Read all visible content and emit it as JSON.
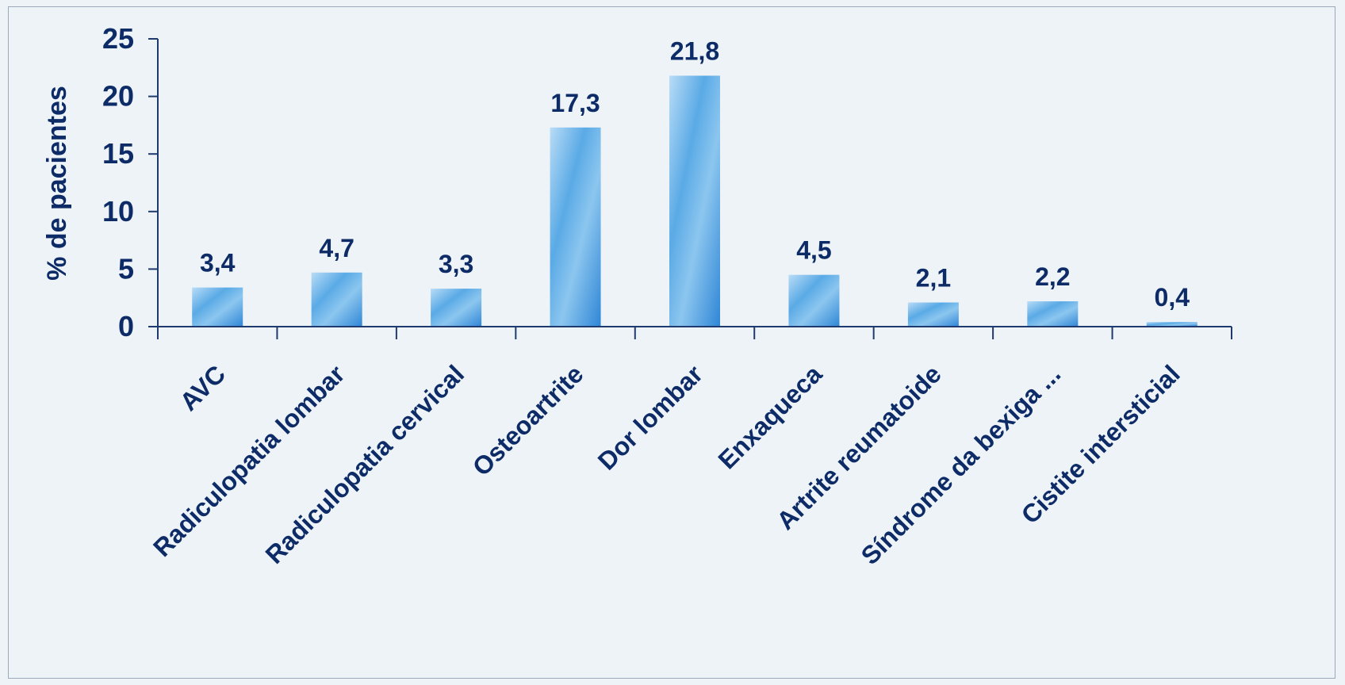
{
  "chart_data": {
    "type": "bar",
    "categories": [
      "AVC",
      "Radiculopatia lombar",
      "Radiculopatia cervical",
      "Osteoartrite",
      "Dor lombar",
      "Enxaqueca",
      "Artrite reumatoide",
      "Síndrome da bexiga ...",
      "Cistite intersticial"
    ],
    "values": [
      3.4,
      4.7,
      3.3,
      17.3,
      21.8,
      4.5,
      2.1,
      2.2,
      0.4
    ],
    "value_labels": [
      "3,4",
      "4,7",
      "3,3",
      "17,3",
      "21,8",
      "4,5",
      "2,1",
      "2,2",
      "0,4"
    ],
    "title": "",
    "xlabel": "",
    "ylabel": "% de pacientes",
    "ylim": [
      0,
      25
    ],
    "yticks": [
      0,
      5,
      10,
      15,
      20,
      25
    ],
    "grid": false,
    "legend": "none",
    "colors": {
      "bar_light": "#b9dcf6",
      "bar_mid": "#5aaae6",
      "bar_dark": "#2f86d6",
      "text": "#0d2b66",
      "axis": "#1f3a6e",
      "background": "#eef3f8"
    }
  }
}
